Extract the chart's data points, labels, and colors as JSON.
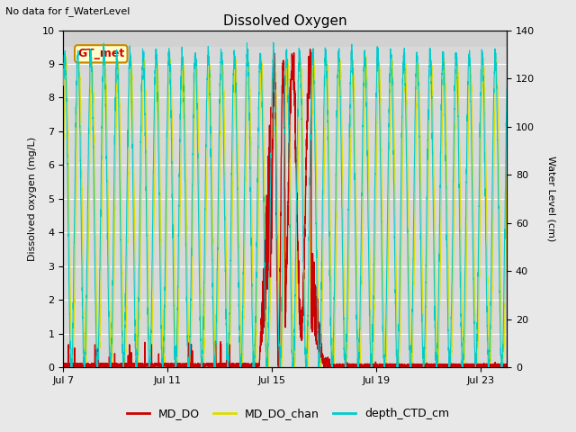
{
  "title": "Dissolved Oxygen",
  "top_left_text": "No data for f_WaterLevel",
  "annotation_text": "GT_met",
  "annotation_color": "#cc0000",
  "annotation_bg": "#ffffcc",
  "annotation_border": "#cc8800",
  "ylabel_left": "Dissolved oxygen (mg/L)",
  "ylabel_right": "Water Level (cm)",
  "ylim_left": [
    0,
    10.0
  ],
  "ylim_right": [
    0,
    140
  ],
  "yticks_left": [
    0.0,
    1.0,
    2.0,
    3.0,
    4.0,
    5.0,
    6.0,
    7.0,
    8.0,
    9.0,
    10.0
  ],
  "yticks_right": [
    0,
    20,
    40,
    60,
    80,
    100,
    120,
    140
  ],
  "xtick_labels": [
    "Jul 7",
    "Jul 11",
    "Jul 15",
    "Jul 19",
    "Jul 23"
  ],
  "legend_labels": [
    "MD_DO",
    "MD_DO_chan",
    "depth_CTD_cm"
  ],
  "legend_colors": [
    "#cc0000",
    "#dddd00",
    "#00cccc"
  ],
  "line_colors": {
    "MD_DO": "#cc0000",
    "MD_DO_chan": "#dddd00",
    "depth_CTD_cm": "#00cccc"
  },
  "fig_facecolor": "#e8e8e8",
  "axes_facecolor": "#d8d8d8",
  "grid_color": "#ffffff",
  "figsize": [
    6.4,
    4.8
  ],
  "dpi": 100
}
